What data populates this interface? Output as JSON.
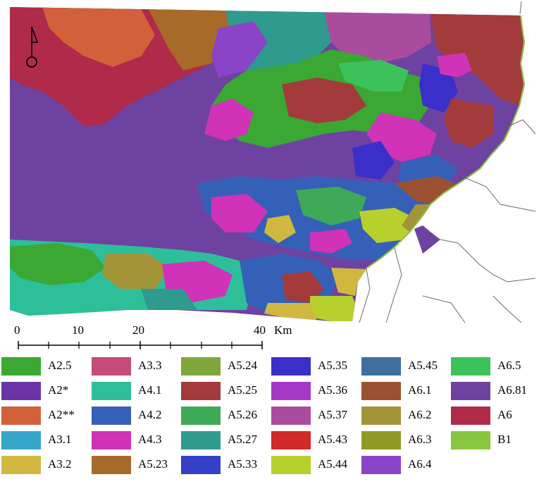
{
  "map": {
    "scalebar": {
      "ticks": [
        "0",
        "10",
        "20",
        "40"
      ],
      "unit": "Km"
    },
    "north_arrow": {
      "icon": "north-arrow-icon"
    }
  },
  "legend": {
    "items": [
      {
        "label": "A2.5",
        "color": "#3aa833"
      },
      {
        "label": "A3.3",
        "color": "#c44b7c"
      },
      {
        "label": "A5.24",
        "color": "#7fa63b"
      },
      {
        "label": "A5.35",
        "color": "#3b2fc9"
      },
      {
        "label": "A5.45",
        "color": "#3e6fa0"
      },
      {
        "label": "A6.5",
        "color": "#3cc25a"
      },
      {
        "label": "A2*",
        "color": "#6a34a6"
      },
      {
        "label": "A4.1",
        "color": "#2dbf9a"
      },
      {
        "label": "A5.25",
        "color": "#a33a3c"
      },
      {
        "label": "A5.36",
        "color": "#a638c8"
      },
      {
        "label": "A6.1",
        "color": "#9b5232"
      },
      {
        "label": "A6.81",
        "color": "#6e42a0"
      },
      {
        "label": "A2**",
        "color": "#d2603a"
      },
      {
        "label": "A4.2",
        "color": "#3560b8"
      },
      {
        "label": "A5.26",
        "color": "#3eaa58"
      },
      {
        "label": "A5.37",
        "color": "#a94c9e"
      },
      {
        "label": "A6.2",
        "color": "#a3943a"
      },
      {
        "label": "A6",
        "color": "#b02a4a"
      },
      {
        "label": "A3.1",
        "color": "#35a6c9"
      },
      {
        "label": "A4.3",
        "color": "#d032b8"
      },
      {
        "label": "A5.27",
        "color": "#2f9a8e"
      },
      {
        "label": "A5.43",
        "color": "#d02a2a"
      },
      {
        "label": "A6.3",
        "color": "#8f9a24"
      },
      {
        "label": "B1",
        "color": "#88c640"
      },
      {
        "label": "A3.2",
        "color": "#d0b840"
      },
      {
        "label": "A5.23",
        "color": "#a86a28"
      },
      {
        "label": "A5.33",
        "color": "#3440c8"
      },
      {
        "label": "A5.44",
        "color": "#b8d02e"
      },
      {
        "label": "A6.4",
        "color": "#8a44c8"
      }
    ]
  }
}
